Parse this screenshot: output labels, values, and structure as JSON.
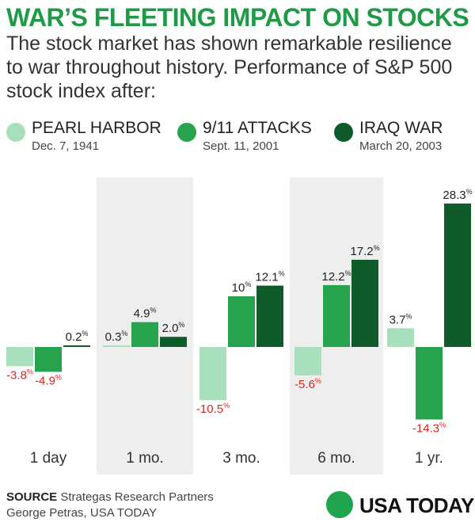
{
  "header": {
    "title": "WAR’S FLEETING IMPACT ON STOCKS",
    "subtitle": "The stock market has shown remarkable resilience to war throughout history. Performance of S&P 500 stock index after:"
  },
  "colors": {
    "pearl_harbor": "#a8dfbd",
    "sept_11": "#27a34d",
    "iraq_war": "#0f5c2a",
    "panel_bg": "#eeeeee",
    "negative_label": "#d7261e",
    "title": "#1f9b48",
    "logo_dot": "#1fa34c"
  },
  "chart_data": {
    "type": "bar",
    "title": "WAR’S FLEETING IMPACT ON STOCKS",
    "xlabel": "",
    "ylabel": "Performance of S&P 500 stock index",
    "unit": "%",
    "categories": [
      "1 day",
      "1 mo.",
      "3 mo.",
      "6 mo.",
      "1 yr."
    ],
    "series": [
      {
        "name": "PEARL HARBOR",
        "date": "Dec. 7, 1941",
        "values": [
          -3.8,
          0.3,
          -10.5,
          -5.6,
          3.7
        ]
      },
      {
        "name": "9/11 ATTACKS",
        "date": "Sept. 11, 2001",
        "values": [
          -4.9,
          4.9,
          10.0,
          12.2,
          -14.3
        ]
      },
      {
        "name": "IRAQ WAR",
        "date": "March 20, 2003",
        "values": [
          0.2,
          2.0,
          12.1,
          17.2,
          28.3
        ]
      }
    ],
    "value_labels": [
      [
        "-3.8",
        "0.3",
        "-10.5",
        "-5.6",
        "3.7"
      ],
      [
        "-4.9",
        "4.9",
        "10",
        "12.2",
        "-14.3"
      ],
      [
        "0.2",
        "2.0",
        "12.1",
        "17.2",
        "28.3"
      ]
    ],
    "ylim": [
      -15,
      30
    ],
    "grid": false,
    "legend": "top",
    "shaded_categories": [
      1,
      3
    ]
  },
  "footer": {
    "source_label": "SOURCE",
    "source_text": "Strategas Research Partners",
    "credit": "George Petras, USA TODAY",
    "logo_text": "USA TODAY"
  }
}
